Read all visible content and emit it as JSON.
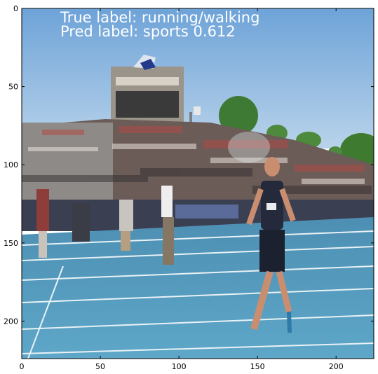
{
  "overlay": {
    "true_label": "True label: running/walking",
    "pred_label": "Pred label: sports 0.612"
  },
  "axes": {
    "x_ticks": [
      0,
      50,
      100,
      150,
      200
    ],
    "y_ticks": [
      0,
      50,
      100,
      150,
      200
    ],
    "x_range": [
      0,
      224
    ],
    "y_range": [
      0,
      224
    ]
  }
}
